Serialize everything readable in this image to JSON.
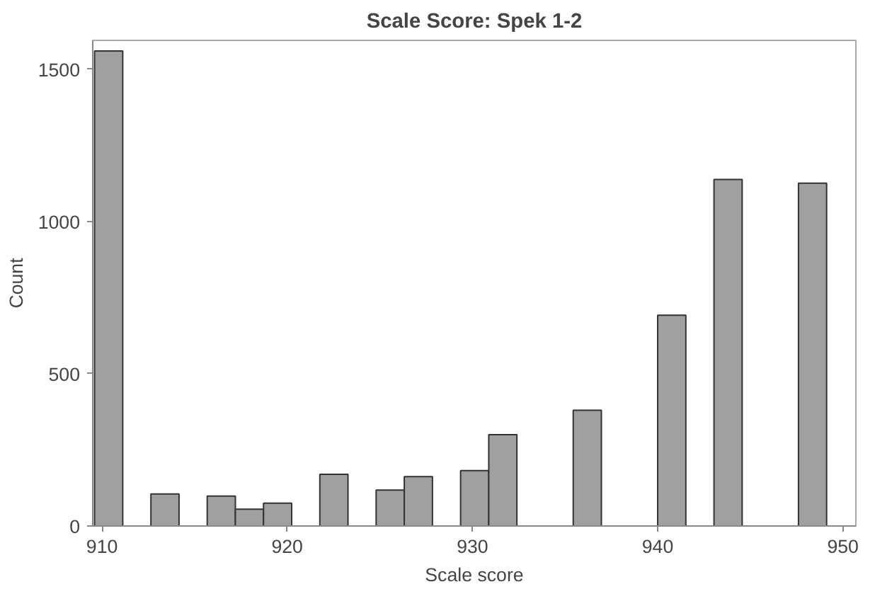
{
  "chart_data": {
    "type": "histogram",
    "title": "Scale Score: Spek 1-2",
    "xlabel": "Scale score",
    "ylabel": "Count",
    "bins": [
      909.6,
      911.12,
      912.64,
      914.16,
      915.68,
      917.2,
      918.72,
      920.24,
      921.76,
      923.28,
      924.8,
      926.32,
      927.84,
      929.36,
      930.88,
      932.4,
      933.92,
      935.44,
      936.96,
      938.48,
      940.0,
      941.52,
      943.04,
      944.56,
      946.08,
      947.6,
      949.12
    ],
    "values": [
      1560,
      0,
      105,
      0,
      98,
      55,
      75,
      0,
      170,
      0,
      118,
      162,
      0,
      182,
      300,
      0,
      0,
      380,
      0,
      0,
      692,
      0,
      1138,
      0,
      0,
      1126
    ],
    "color": "#a0a0a0",
    "xlim": [
      909.5,
      950.7
    ],
    "xticks": [
      910,
      920,
      930,
      940,
      950
    ],
    "ylim": [
      0,
      1595
    ],
    "yticks": [
      0,
      500,
      1000,
      1500
    ],
    "grid": false
  }
}
